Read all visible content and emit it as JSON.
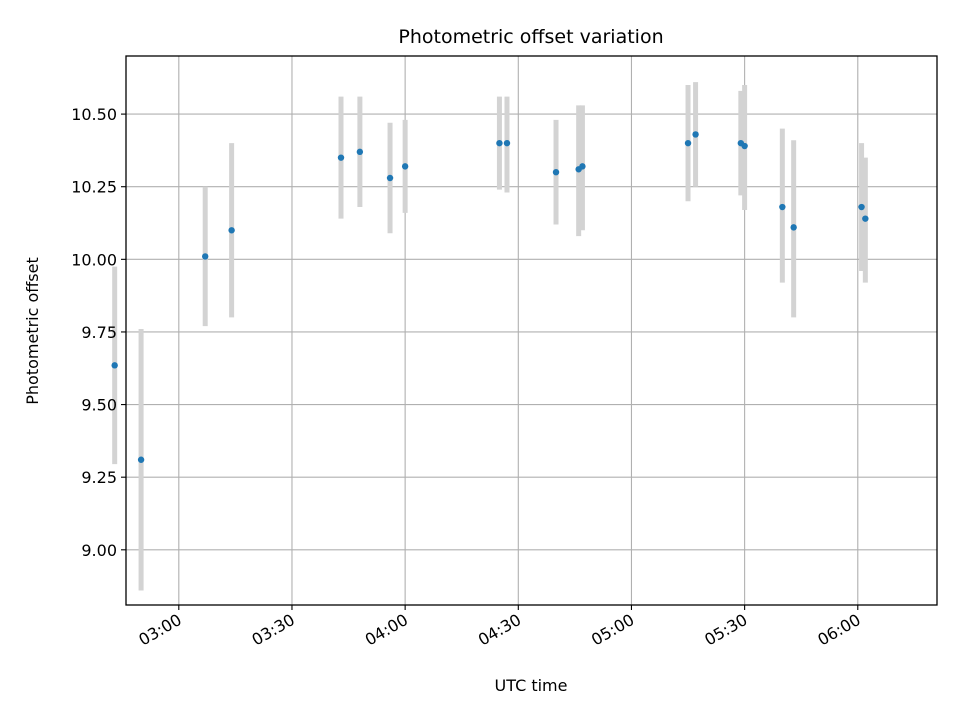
{
  "chart_data": {
    "type": "scatter",
    "title": "Photometric offset variation",
    "xlabel": "UTC time",
    "ylabel": "Photometric offset",
    "x_axis_type": "time",
    "xlim": [
      "02:46",
      "06:21"
    ],
    "ylim": [
      8.81,
      10.7
    ],
    "x_ticks": [
      "03:00",
      "03:30",
      "04:00",
      "04:30",
      "05:00",
      "05:30",
      "06:00"
    ],
    "y_ticks": [
      9.0,
      9.25,
      9.5,
      9.75,
      10.0,
      10.25,
      10.5
    ],
    "y_tick_labels": [
      "9.00",
      "9.25",
      "9.50",
      "9.75",
      "10.00",
      "10.25",
      "10.50"
    ],
    "grid": true,
    "legend": "none",
    "point_color": "#1f77b4",
    "errorbar_color": "#d3d3d3",
    "series": [
      {
        "points": [
          {
            "x": "02:43",
            "y": 9.635,
            "lo": 9.295,
            "hi": 9.975
          },
          {
            "x": "02:50",
            "y": 9.31,
            "lo": 8.86,
            "hi": 9.76
          },
          {
            "x": "03:07",
            "y": 10.01,
            "lo": 9.77,
            "hi": 10.25
          },
          {
            "x": "03:14",
            "y": 10.1,
            "lo": 9.8,
            "hi": 10.4
          },
          {
            "x": "03:43",
            "y": 10.35,
            "lo": 10.14,
            "hi": 10.56
          },
          {
            "x": "03:48",
            "y": 10.37,
            "lo": 10.18,
            "hi": 10.56
          },
          {
            "x": "03:56",
            "y": 10.28,
            "lo": 10.09,
            "hi": 10.47
          },
          {
            "x": "04:00",
            "y": 10.32,
            "lo": 10.16,
            "hi": 10.48
          },
          {
            "x": "04:25",
            "y": 10.4,
            "lo": 10.24,
            "hi": 10.56
          },
          {
            "x": "04:27",
            "y": 10.4,
            "lo": 10.23,
            "hi": 10.56
          },
          {
            "x": "04:40",
            "y": 10.3,
            "lo": 10.12,
            "hi": 10.48
          },
          {
            "x": "04:46",
            "y": 10.31,
            "lo": 10.08,
            "hi": 10.53
          },
          {
            "x": "04:47",
            "y": 10.32,
            "lo": 10.1,
            "hi": 10.53
          },
          {
            "x": "05:15",
            "y": 10.4,
            "lo": 10.2,
            "hi": 10.6
          },
          {
            "x": "05:17",
            "y": 10.43,
            "lo": 10.25,
            "hi": 10.61
          },
          {
            "x": "05:29",
            "y": 10.4,
            "lo": 10.22,
            "hi": 10.58
          },
          {
            "x": "05:30",
            "y": 10.39,
            "lo": 10.17,
            "hi": 10.6
          },
          {
            "x": "05:40",
            "y": 10.18,
            "lo": 9.92,
            "hi": 10.45
          },
          {
            "x": "05:43",
            "y": 10.11,
            "lo": 9.8,
            "hi": 10.41
          },
          {
            "x": "06:01",
            "y": 10.18,
            "lo": 9.96,
            "hi": 10.4
          },
          {
            "x": "06:02",
            "y": 10.14,
            "lo": 9.92,
            "hi": 10.35
          }
        ]
      }
    ]
  }
}
